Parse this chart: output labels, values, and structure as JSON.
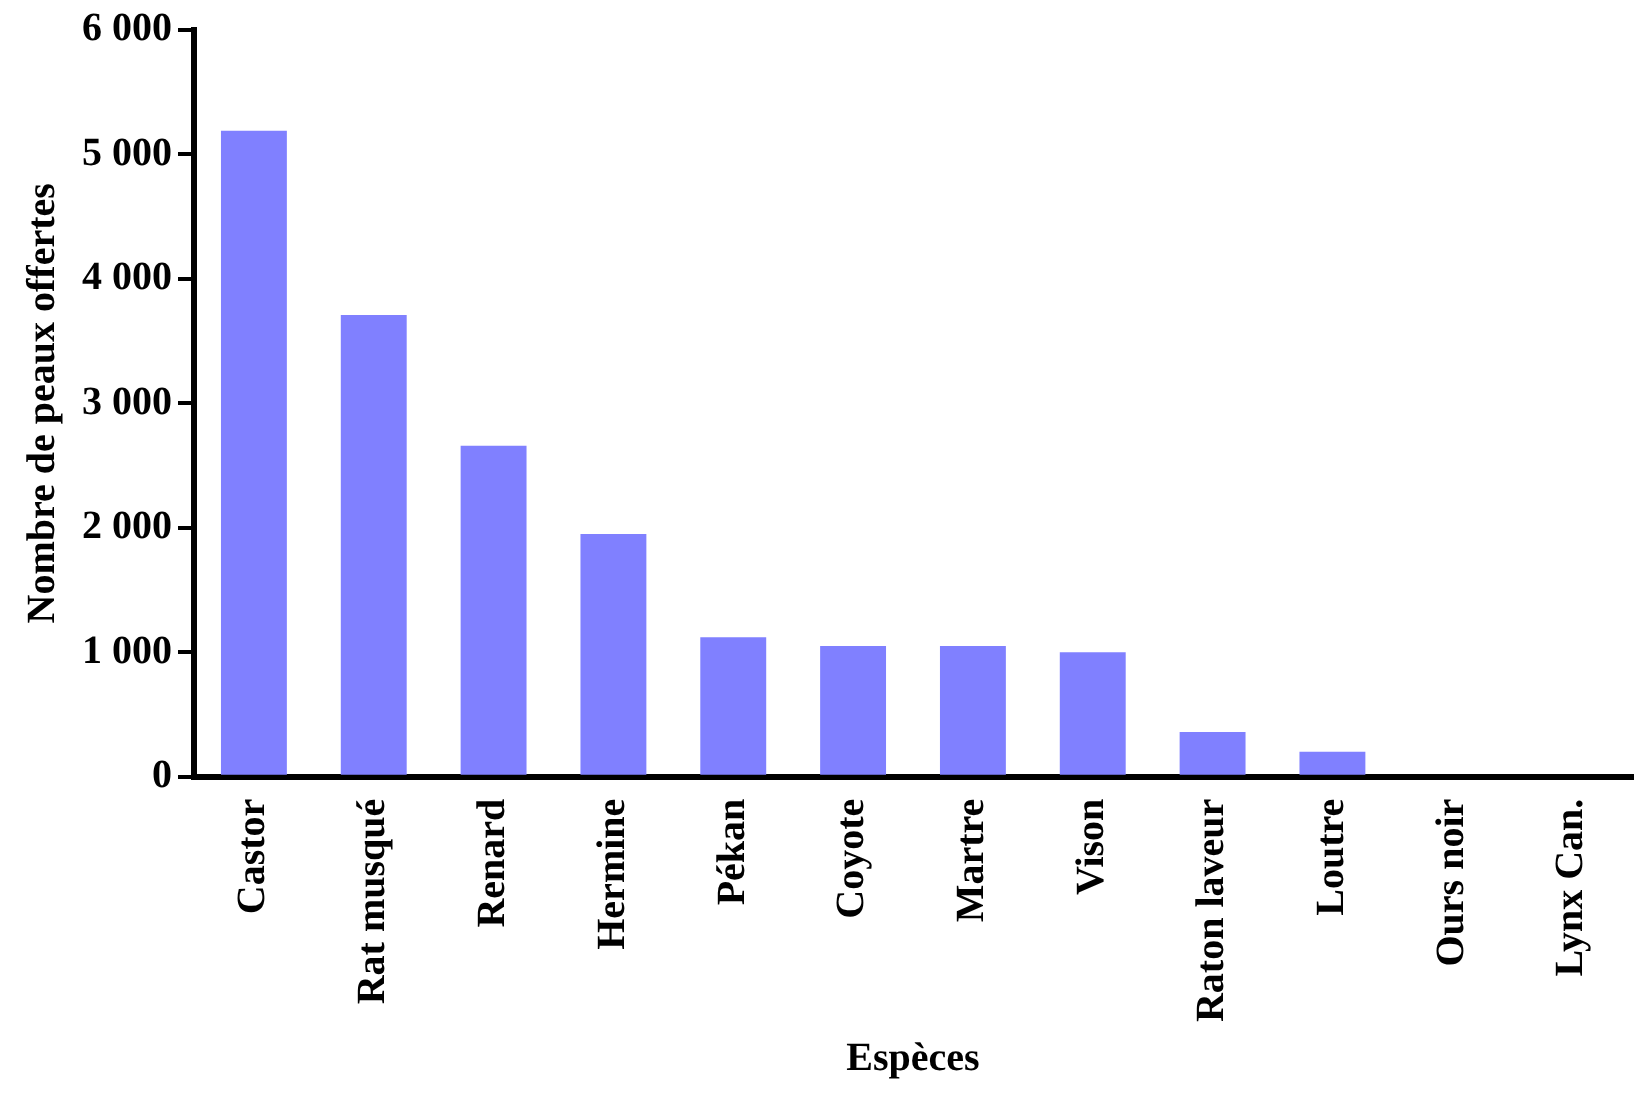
{
  "chart_data": {
    "type": "bar",
    "xlabel": "Espèces",
    "ylabel": "Nombre de peaux offertes",
    "categories": [
      "Castor",
      "Rat musqué",
      "Renard",
      "Hermine",
      "Pékan",
      "Coyote",
      "Martre",
      "Vison",
      "Raton laveur",
      "Loutre",
      "Ours noir",
      "Lynx Can."
    ],
    "values": [
      5190,
      3710,
      2660,
      1950,
      1120,
      1050,
      1050,
      1000,
      360,
      200,
      0,
      0
    ],
    "color": "#8080ff",
    "ylim": [
      0,
      6000
    ],
    "yticks": [
      {
        "value": 0,
        "label": "0"
      },
      {
        "value": 1000,
        "label": "1 000"
      },
      {
        "value": 2000,
        "label": "2 000"
      },
      {
        "value": 3000,
        "label": "3 000"
      },
      {
        "value": 4000,
        "label": "4 000"
      },
      {
        "value": 5000,
        "label": "5 000"
      },
      {
        "value": 6000,
        "label": "6 000"
      }
    ],
    "grid": false,
    "legend": false
  }
}
